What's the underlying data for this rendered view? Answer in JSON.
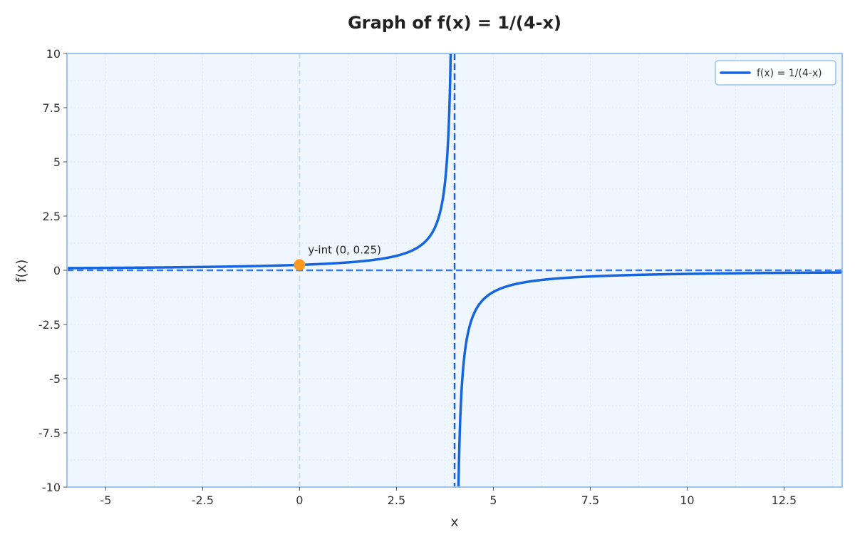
{
  "chart_data": {
    "type": "line",
    "title": "Graph of f(x) = 1/(4-x)",
    "xlabel": "x",
    "ylabel": "f(x)",
    "xlim": [
      -6,
      14
    ],
    "ylim": [
      -10,
      10
    ],
    "x_ticks": [
      -5,
      -2.5,
      0,
      2.5,
      5,
      7.5,
      10,
      12.5
    ],
    "x_tick_labels": [
      "-5",
      "-2.5",
      "0",
      "2.5",
      "5",
      "7.5",
      "10",
      "12.5"
    ],
    "y_ticks": [
      10,
      7.5,
      5,
      2.5,
      0,
      -2.5,
      -5,
      -7.5,
      -10
    ],
    "y_tick_labels": [
      "10",
      "7.5",
      "5",
      "2.5",
      "0",
      "-2.5",
      "-5",
      "-7.5",
      "-10"
    ],
    "grid": true,
    "legend_position": "top-right",
    "series": [
      {
        "name": "f(x) = 1/(4-x)",
        "function": "1/(4-x)",
        "color": "#1565e0",
        "domain_branches": [
          [
            -6,
            3.9
          ],
          [
            4.1,
            14
          ]
        ]
      }
    ],
    "asymptotes": {
      "vertical": [
        4
      ],
      "horizontal": [
        0
      ],
      "color": "#1565e0"
    },
    "points": [
      {
        "x": 0,
        "y": 0.25,
        "label": "y-int (0, 0.25)",
        "color": "#ff9a1f"
      }
    ],
    "colors": {
      "plot_background": "#f0f6fe",
      "frame": "#9cc2f2",
      "grid": "#dce8f6",
      "y_axis_line": "#c5dcf5"
    }
  }
}
